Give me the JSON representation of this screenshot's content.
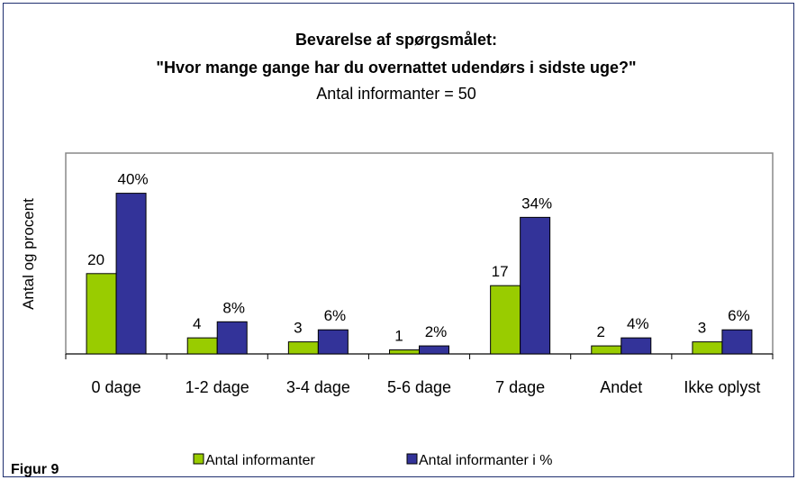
{
  "chart_data": {
    "type": "bar",
    "title": "Bevarelse af spørgsmålet:",
    "title_line2": "\"Hvor mange gange har du overnattet udendørs i sidste uge?\"",
    "subtitle": "Antal informanter = 50",
    "ylabel": "Antal og procent",
    "figure_label": "Figur 9",
    "categories": [
      "0 dage",
      "1-2 dage",
      "3-4 dage",
      "5-6 dage",
      "7 dage",
      "Andet",
      "Ikke oplyst"
    ],
    "series": [
      {
        "name": "Antal informanter",
        "color": "#99cc00",
        "values": [
          20,
          4,
          3,
          1,
          17,
          2,
          3
        ]
      },
      {
        "name": "Antal informanter i %",
        "color": "#333399",
        "values": [
          40,
          8,
          6,
          2,
          34,
          4,
          6
        ],
        "value_labels": [
          "40%",
          "8%",
          "6%",
          "2%",
          "34%",
          "4%",
          "6%"
        ]
      }
    ],
    "ylim": [
      0,
      50
    ],
    "legend": "bottom"
  }
}
